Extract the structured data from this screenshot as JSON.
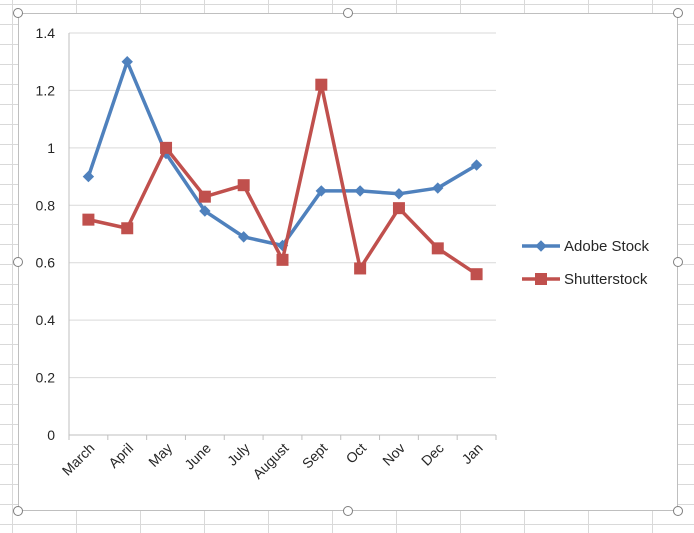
{
  "chart_data": {
    "type": "line",
    "categories": [
      "March",
      "April",
      "May",
      "June",
      "July",
      "August",
      "Sept",
      "Oct",
      "Nov",
      "Dec",
      "Jan"
    ],
    "series": [
      {
        "name": "Adobe Stock",
        "values": [
          0.9,
          1.3,
          0.98,
          0.78,
          0.69,
          0.66,
          0.85,
          0.85,
          0.84,
          0.86,
          0.94
        ],
        "color": "#4f81bd",
        "marker": "diamond"
      },
      {
        "name": "Shutterstock",
        "values": [
          0.75,
          0.72,
          1.0,
          0.83,
          0.87,
          0.61,
          1.22,
          0.58,
          0.79,
          0.65,
          0.56
        ],
        "color": "#c0504d",
        "marker": "square"
      }
    ],
    "ylim": [
      0,
      1.4
    ],
    "yticks": [
      0,
      0.2,
      0.4,
      0.6,
      0.8,
      1,
      1.2,
      1.4
    ],
    "ytick_labels": [
      "0",
      "0.2",
      "0.4",
      "0.6",
      "0.8",
      "1",
      "1.2",
      "1.4"
    ],
    "grid": true,
    "legend_position": "right",
    "title": "",
    "xlabel": "",
    "ylabel": ""
  }
}
